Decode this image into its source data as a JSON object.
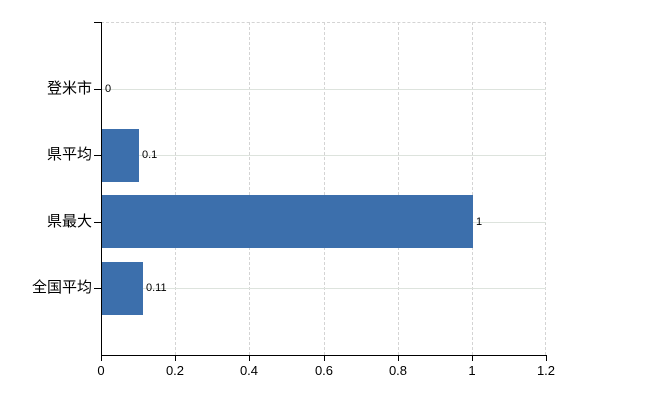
{
  "chart_data": {
    "type": "bar",
    "orientation": "horizontal",
    "title": "",
    "categories": [
      "登米市",
      "県平均",
      "県最大",
      "全国平均"
    ],
    "values": [
      0,
      0.1,
      1,
      0.11
    ],
    "value_labels": [
      "0",
      "0.1",
      "1",
      "0.11"
    ],
    "xlim": [
      0,
      1.2
    ],
    "x_ticks": [
      0,
      0.2,
      0.4,
      0.6,
      0.8,
      1,
      1.2
    ],
    "x_tick_labels": [
      "0",
      "0.2",
      "0.4",
      "0.6",
      "0.8",
      "1",
      "1.2"
    ],
    "legend": "none",
    "grid": "on",
    "colors": {
      "bar_fill": "#3c6fac",
      "axis_line": "#000000",
      "vertical_gridline": "#d4d4d4",
      "horizontal_gridline": "#dde3dd",
      "label_text": "#000000",
      "background": "#ffffff"
    }
  }
}
